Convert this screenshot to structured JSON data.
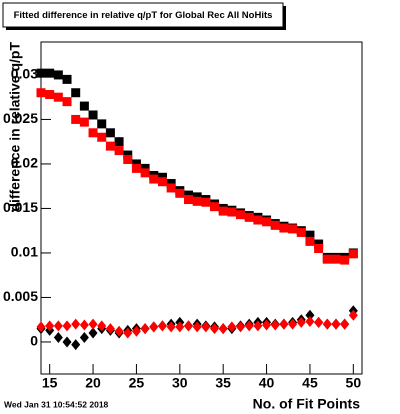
{
  "chart_data": {
    "type": "scatter",
    "title": "Fitted difference in relative q/pT for Global Rec All NoHits",
    "y_label": "difference in relative q/pT",
    "x_label": "No. of Fit Points",
    "timestamp": "Wed Jan 31 10:54:52 2018",
    "x": [
      14,
      15,
      16,
      17,
      18,
      19,
      20,
      21,
      22,
      23,
      24,
      25,
      26,
      27,
      28,
      29,
      30,
      31,
      32,
      33,
      34,
      35,
      36,
      37,
      38,
      39,
      40,
      41,
      42,
      43,
      44,
      45,
      46,
      47,
      48,
      49,
      50
    ],
    "series": [
      {
        "color": "#000000",
        "marker": "square",
        "values": [
          0.0302,
          0.0302,
          0.03,
          0.0295,
          0.028,
          0.0265,
          0.0255,
          0.0245,
          0.0235,
          0.0225,
          0.021,
          0.02,
          0.0195,
          0.0187,
          0.0185,
          0.0178,
          0.017,
          0.0165,
          0.0163,
          0.016,
          0.0155,
          0.015,
          0.0148,
          0.0145,
          0.0142,
          0.014,
          0.0137,
          0.0133,
          0.013,
          0.0128,
          0.0125,
          0.012,
          0.011,
          0.0095,
          0.0095,
          0.0095,
          0.01
        ]
      },
      {
        "color": "#ff0000",
        "marker": "square",
        "values": [
          0.028,
          0.0278,
          0.0275,
          0.027,
          0.025,
          0.0247,
          0.0235,
          0.023,
          0.022,
          0.0215,
          0.0205,
          0.0195,
          0.019,
          0.0183,
          0.018,
          0.0173,
          0.0167,
          0.016,
          0.0158,
          0.0157,
          0.0152,
          0.0147,
          0.0146,
          0.0143,
          0.014,
          0.0137,
          0.0135,
          0.0131,
          0.0128,
          0.0127,
          0.0123,
          0.0113,
          0.0105,
          0.0093,
          0.0093,
          0.0092,
          0.0099
        ]
      },
      {
        "color": "#000000",
        "marker": "diamond",
        "values": [
          0.0015,
          0.0013,
          0.0005,
          0.0,
          -0.0003,
          0.0005,
          0.001,
          0.0015,
          0.0013,
          0.001,
          0.0013,
          0.0015,
          0.0015,
          0.0017,
          0.0018,
          0.002,
          0.0022,
          0.0018,
          0.002,
          0.0018,
          0.0017,
          0.0015,
          0.0015,
          0.0018,
          0.002,
          0.0022,
          0.0022,
          0.002,
          0.002,
          0.0022,
          0.0025,
          0.003,
          0.0022,
          0.002,
          0.002,
          0.002,
          0.0035
        ]
      },
      {
        "color": "#ff0000",
        "marker": "diamond",
        "values": [
          0.0017,
          0.0018,
          0.0018,
          0.0018,
          0.002,
          0.0019,
          0.002,
          0.0018,
          0.0015,
          0.0012,
          0.001,
          0.0012,
          0.0015,
          0.0017,
          0.0018,
          0.0017,
          0.0017,
          0.0018,
          0.0017,
          0.0017,
          0.0015,
          0.0015,
          0.0017,
          0.0017,
          0.0018,
          0.0018,
          0.0019,
          0.0019,
          0.002,
          0.002,
          0.0022,
          0.0023,
          0.0022,
          0.002,
          0.002,
          0.002,
          0.003
        ]
      }
    ],
    "xlim": [
      14,
      51
    ],
    "ylim": [
      -0.0036,
      0.0337
    ],
    "xticks": [
      15,
      20,
      25,
      30,
      35,
      40,
      45,
      50
    ],
    "yticks": [
      0,
      0.005,
      0.01,
      0.015,
      0.02,
      0.025,
      0.03
    ]
  }
}
